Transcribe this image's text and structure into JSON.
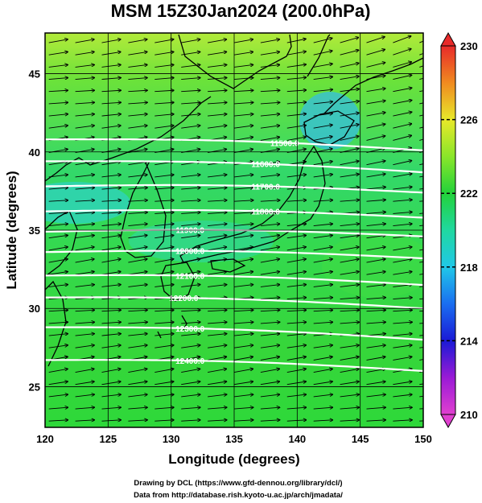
{
  "title": "MSM 15Z30Jan2024 (200.0hPa)",
  "xlabel": "Longitude (degrees)",
  "ylabel": "Latitude  (degrees)",
  "credits": {
    "line1": "Drawing by DCL (https://www.gfd-dennou.org/library/dcl/)",
    "line2": "Data from http://database.rish.kyoto-u.ac.jp/arch/jmadata/"
  },
  "map": {
    "lon_range": [
      120,
      150
    ],
    "lat_range": [
      22.4,
      47.6
    ],
    "x_ticks": [
      120,
      125,
      130,
      135,
      140,
      145,
      150
    ],
    "y_ticks": [
      25,
      30,
      35,
      40,
      45
    ],
    "x_tick_labels": [
      "120",
      "125",
      "130",
      "135",
      "140",
      "145",
      "150"
    ],
    "y_tick_labels": [
      "25",
      "30",
      "35",
      "40",
      "45"
    ],
    "field": "temperature (colour shading)",
    "vectors": "wind arrows, predominantly westerly",
    "contour_color": "#ffffff"
  },
  "contours": [
    {
      "label": "11500.0",
      "lat_west": 40.8,
      "lat_east": 40.1,
      "label_lon": 139.0
    },
    {
      "label": "11600.0",
      "lat_west": 39.4,
      "lat_east": 38.7,
      "label_lon": 137.5
    },
    {
      "label": "11700.0",
      "lat_west": 37.8,
      "lat_east": 37.4,
      "label_lon": 137.5
    },
    {
      "label": "11800.0",
      "lat_west": 36.2,
      "lat_east": 35.8,
      "label_lon": 137.5
    },
    {
      "label": "11900.0",
      "lat_west": 34.9,
      "lat_east": 34.6,
      "label_lon": 131.5
    },
    {
      "label": "12000.0",
      "lat_west": 33.6,
      "lat_east": 33.2,
      "label_lon": 131.5
    },
    {
      "label": "12100.0",
      "lat_west": 32.1,
      "lat_east": 31.5,
      "label_lon": 131.5
    },
    {
      "label": "12200.0",
      "lat_west": 30.7,
      "lat_east": 30.0,
      "label_lon": 131.0
    },
    {
      "label": "12300.0",
      "lat_west": 28.8,
      "lat_east": 28.0,
      "label_lon": 131.5
    },
    {
      "label": "12400.0",
      "lat_west": 26.7,
      "lat_east": 26.0,
      "label_lon": 131.5
    }
  ],
  "colorbar": {
    "min": 210,
    "max": 230,
    "ticks": [
      210,
      214,
      218,
      222,
      226,
      230
    ],
    "tick_labels": [
      "210",
      "214",
      "218",
      "222",
      "226",
      "230"
    ],
    "stops": [
      {
        "value": 210,
        "color": "#e040d0"
      },
      {
        "value": 212,
        "color": "#9a1ad6"
      },
      {
        "value": 214,
        "color": "#1a1ad6"
      },
      {
        "value": 216,
        "color": "#1a6ef0"
      },
      {
        "value": 218,
        "color": "#20c8e8"
      },
      {
        "value": 220,
        "color": "#20d8a0"
      },
      {
        "value": 222,
        "color": "#22d23a"
      },
      {
        "value": 224,
        "color": "#8ae62a"
      },
      {
        "value": 226,
        "color": "#e8e82a"
      },
      {
        "value": 228,
        "color": "#f08a20"
      },
      {
        "value": 230,
        "color": "#e82a2a"
      }
    ]
  }
}
